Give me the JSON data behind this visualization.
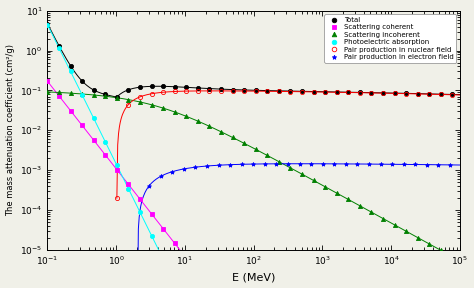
{
  "xlabel": "E (MeV)",
  "ylabel": "The mass attenuation coefficient (cm²/g)",
  "xlim": [
    0.1,
    100000.0
  ],
  "ylim": [
    1e-05,
    10
  ],
  "background_color": "#f0f0e8",
  "legend_labels": [
    "Total",
    "Scattering coherent",
    "Scattering incoherent",
    "Photoelectric absorption",
    "Pair production in nuclear field",
    "Pair production in electron field"
  ],
  "colors": [
    "black",
    "magenta",
    "green",
    "cyan",
    "red",
    "blue"
  ],
  "markers": [
    "o",
    "s",
    "^",
    "o",
    "o",
    "*"
  ],
  "markerfacecolors": [
    "black",
    "magenta",
    "green",
    "cyan",
    "none",
    "blue"
  ]
}
